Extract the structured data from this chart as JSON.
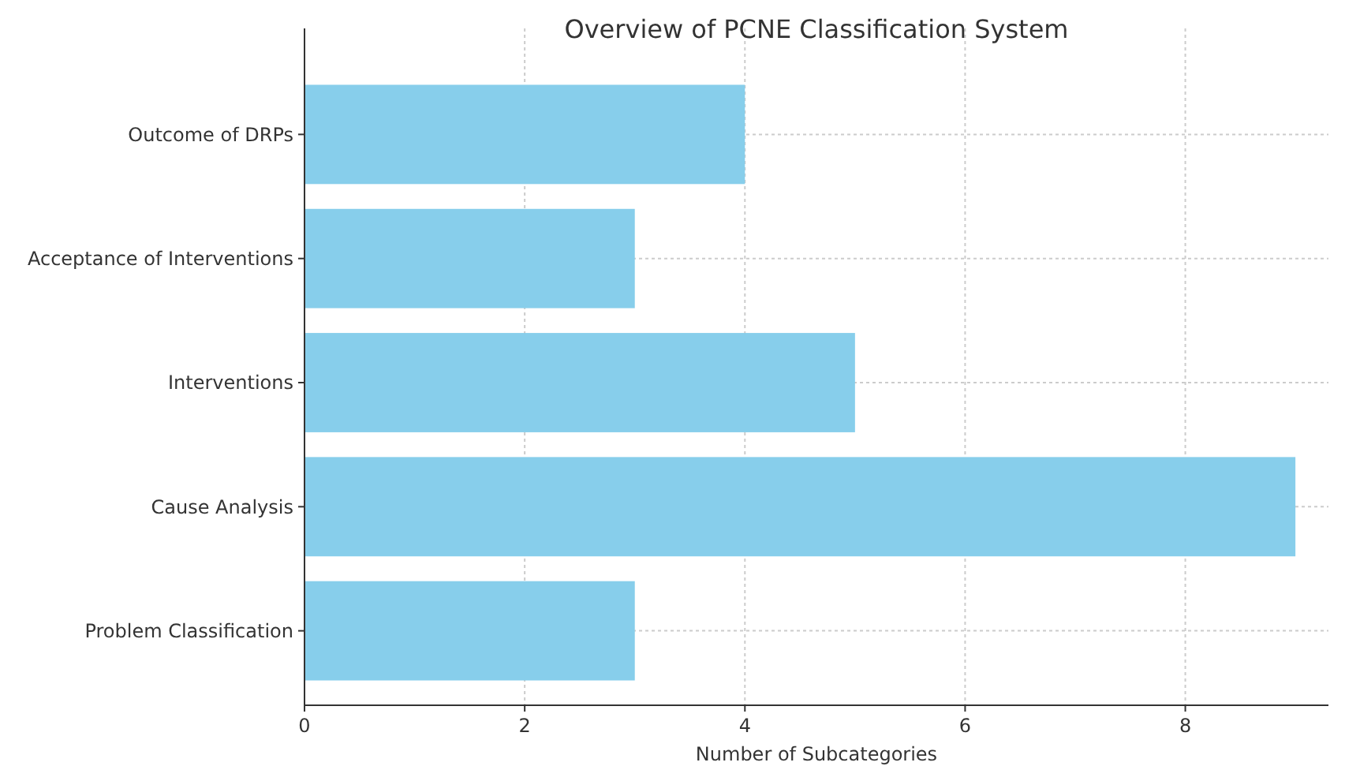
{
  "chart_data": {
    "type": "bar",
    "orientation": "horizontal",
    "title": "Overview of PCNE Classification System",
    "xlabel": "Number of Subcategories",
    "categories": [
      "Outcome of DRPs",
      "Acceptance of Interventions",
      "Interventions",
      "Cause Analysis",
      "Problem Classification"
    ],
    "values": [
      4,
      3,
      5,
      9,
      3
    ],
    "color": "#87ceeb",
    "xlim": [
      0,
      9.3
    ],
    "xticks": [
      0,
      2,
      4,
      6,
      8
    ],
    "grid": true
  }
}
